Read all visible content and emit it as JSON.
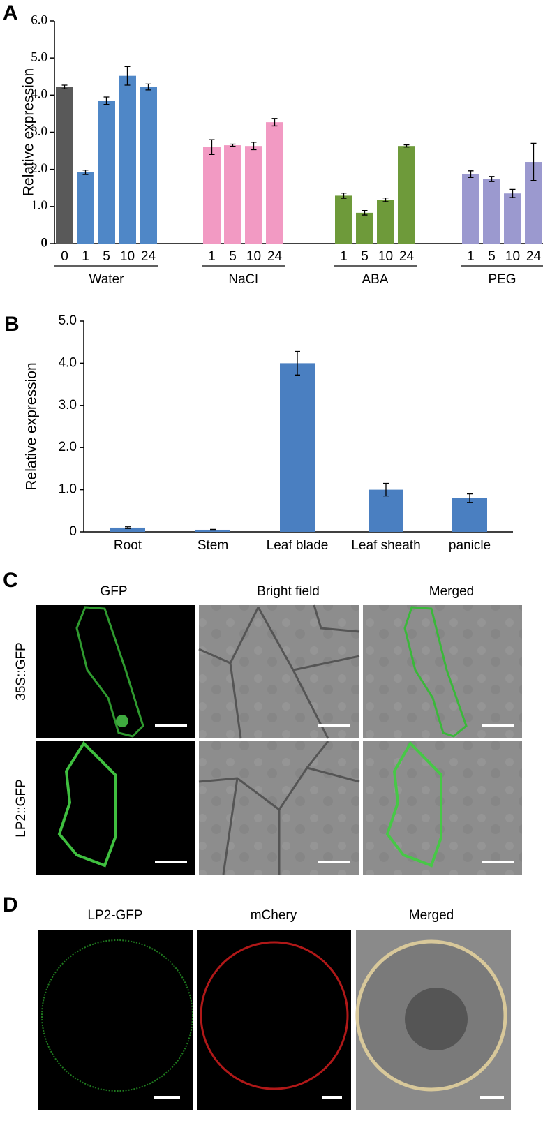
{
  "chart_data": [
    {
      "type": "bar",
      "label": "A",
      "y_label": "Relative expression",
      "ylim": [
        0,
        6
      ],
      "yticks": [
        0,
        {
          "value": 1,
          "label": "1.0"
        },
        {
          "value": 2,
          "label": "2.0"
        },
        {
          "value": 3,
          "label": "3.0"
        },
        {
          "value": 4,
          "label": "4.0"
        },
        {
          "value": 5,
          "label": "5.0"
        },
        {
          "value": 6,
          "label": "6.0"
        }
      ],
      "series": [
        {
          "name": "Water",
          "categories": [
            "0",
            "1",
            "5",
            "10",
            "24"
          ],
          "values": [
            4.22,
            1.92,
            3.85,
            4.52,
            4.22
          ],
          "errors": [
            0.05,
            0.06,
            0.1,
            0.25,
            0.08
          ],
          "colors": [
            "#595959",
            "#4f87c7",
            "#4f87c7",
            "#4f87c7",
            "#4f87c7"
          ]
        },
        {
          "name": "NaCl",
          "categories": [
            "1",
            "5",
            "10",
            "24"
          ],
          "values": [
            2.6,
            2.65,
            2.63,
            3.27
          ],
          "errors": [
            0.2,
            0.03,
            0.1,
            0.1
          ],
          "colors": [
            "#f29ac3",
            "#f29ac3",
            "#f29ac3",
            "#f29ac3"
          ]
        },
        {
          "name": "ABA",
          "categories": [
            "1",
            "5",
            "10",
            "24"
          ],
          "values": [
            1.29,
            0.83,
            1.18,
            2.63
          ],
          "errors": [
            0.07,
            0.06,
            0.05,
            0.03
          ],
          "colors": [
            "#6e9a3a",
            "#6e9a3a",
            "#6e9a3a",
            "#6e9a3a"
          ]
        },
        {
          "name": "PEG",
          "categories": [
            "1",
            "5",
            "10",
            "24"
          ],
          "values": [
            1.87,
            1.74,
            1.35,
            2.2
          ],
          "errors": [
            0.09,
            0.07,
            0.11,
            0.5
          ],
          "colors": [
            "#9b99cf",
            "#9b99cf",
            "#9b99cf",
            "#9b99cf"
          ]
        }
      ]
    },
    {
      "type": "bar",
      "label": "B",
      "y_label": "Relative expression",
      "ylim": [
        0,
        5
      ],
      "yticks": [
        0,
        {
          "value": 1,
          "label": "1.0"
        },
        {
          "value": 2,
          "label": "2.0"
        },
        {
          "value": 3,
          "label": "3.0"
        },
        {
          "value": 4,
          "label": "4.0"
        },
        {
          "value": 5,
          "label": "5.0"
        }
      ],
      "series": [
        {
          "categories": [
            "Root",
            "Stem",
            "Leaf blade",
            "Leaf sheath",
            "panicle"
          ],
          "values": [
            0.1,
            0.05,
            4.0,
            1.0,
            0.8
          ],
          "errors": [
            0.02,
            0.01,
            0.28,
            0.15,
            0.1
          ],
          "colors": [
            "#4a7fc1",
            "#4a7fc1",
            "#4a7fc1",
            "#4a7fc1",
            "#4a7fc1"
          ]
        }
      ]
    }
  ],
  "panel_c": {
    "label": "C",
    "columns": [
      "GFP",
      "Bright field",
      "Merged"
    ],
    "rows": [
      "35S::GFP",
      "LP2::GFP"
    ]
  },
  "panel_d": {
    "label": "D",
    "columns": [
      "LP2-GFP",
      "mChery",
      "Merged"
    ]
  }
}
